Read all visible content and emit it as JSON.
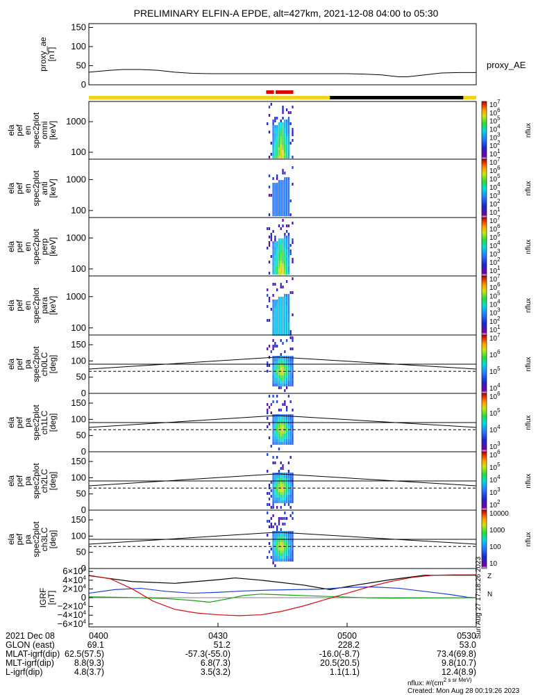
{
  "title": "PRELIMINARY ELFIN-A EPDE, alt=427km, 2021-12-08 04:00 to 05:30",
  "chart_data": [
    {
      "id": "proxy_ae",
      "type": "line",
      "ylabel": [
        "proxy_ae",
        "[nT]"
      ],
      "yticks": [
        "150",
        "100",
        "50",
        "0"
      ],
      "ylim": [
        0,
        160
      ],
      "legend": "proxy_AE",
      "x_minutes": [
        0,
        2,
        5,
        8,
        12,
        16,
        20,
        24,
        28,
        32,
        36,
        40,
        44,
        48,
        52,
        56,
        60,
        64,
        68,
        72,
        74,
        78,
        82,
        86,
        90
      ],
      "values": [
        33,
        35,
        38,
        40,
        40,
        38,
        33,
        30,
        29,
        29,
        29,
        29,
        29,
        29,
        29,
        29,
        29,
        28,
        26,
        21,
        21,
        26,
        31,
        32,
        32
      ]
    },
    {
      "id": "ela_pef_en_spec2plot_omni",
      "type": "heatmap",
      "ylabel": [
        "ela",
        "pef",
        "en",
        "spec2plot",
        "omni",
        "[keV]"
      ],
      "yticks": [
        "1000",
        "100"
      ],
      "colorbar_label": "nflux",
      "colorbar_ticks": [
        "10^7",
        "10^6",
        "10^5",
        "10^4",
        "10^3",
        "10^2",
        "10^1"
      ]
    },
    {
      "id": "ela_pef_en_spec2plot_anti",
      "type": "heatmap",
      "ylabel": [
        "ela",
        "pef",
        "en",
        "spec2plot",
        "anti",
        "[keV]"
      ],
      "yticks": [
        "1000",
        "100"
      ],
      "colorbar_label": "nflux",
      "colorbar_ticks": [
        "10^7",
        "10^6",
        "10^5",
        "10^4",
        "10^3",
        "10^2",
        "10^1"
      ]
    },
    {
      "id": "ela_pef_en_spec2plot_perp",
      "type": "heatmap",
      "ylabel": [
        "ela",
        "pef",
        "en",
        "spec2plot",
        "perp",
        "[keV]"
      ],
      "yticks": [
        "1000",
        "100"
      ],
      "colorbar_label": "nflux",
      "colorbar_ticks": [
        "10^7",
        "10^6",
        "10^5",
        "10^4",
        "10^3",
        "10^2",
        "10^1"
      ]
    },
    {
      "id": "ela_pef_en_spec2plot_para",
      "type": "heatmap",
      "ylabel": [
        "ela",
        "pef",
        "en",
        "spec2plot",
        "para",
        "[keV]"
      ],
      "yticks": [
        "1000",
        "100"
      ],
      "colorbar_label": "nflux",
      "colorbar_ticks": [
        "10^7",
        "10^6",
        "10^5",
        "10^4",
        "10^3",
        "10^2",
        "10^1"
      ]
    },
    {
      "id": "ela_pef_pa_spec2plot_ch0LC",
      "type": "heatmap",
      "ylabel": [
        "ela",
        "pef",
        "pa",
        "spec2plot",
        "ch0LC",
        "[deg]"
      ],
      "yticks": [
        "150",
        "100",
        "50",
        "0"
      ],
      "colorbar_label": "nflux",
      "colorbar_ticks": [
        "10^7",
        "10^6",
        "10^5",
        "10^4"
      ]
    },
    {
      "id": "ela_pef_pa_spec2plot_ch1LC",
      "type": "heatmap",
      "ylabel": [
        "ela",
        "pef",
        "pa",
        "spec2plot",
        "ch1LC",
        "[deg]"
      ],
      "yticks": [
        "150",
        "100",
        "50",
        "0"
      ],
      "colorbar_label": "nflux",
      "colorbar_ticks": [
        "10^6",
        "10^5",
        "10^4",
        "10^3"
      ]
    },
    {
      "id": "ela_pef_pa_spec2plot_ch2LC",
      "type": "heatmap",
      "ylabel": [
        "ela",
        "pef",
        "pa",
        "spec2plot",
        "ch2LC",
        "[deg]"
      ],
      "yticks": [
        "150",
        "100",
        "50",
        "0"
      ],
      "colorbar_label": "nflux",
      "colorbar_ticks": [
        "10^6",
        "10^5",
        "10^4",
        "10^3",
        "10^2"
      ]
    },
    {
      "id": "ela_pef_pa_spec2plot_ch3LC",
      "type": "heatmap",
      "ylabel": [
        "ela",
        "pef",
        "pa",
        "spec2plot",
        "ch3LC",
        "[deg]"
      ],
      "yticks": [
        "150",
        "100",
        "50",
        "0"
      ],
      "colorbar_label": "nflux",
      "colorbar_ticks": [
        "10000",
        "1000",
        "100",
        "10"
      ]
    },
    {
      "id": "igrf",
      "type": "line",
      "ylabel": [
        "IGRF",
        "[nT]"
      ],
      "yticks": [
        "6×10^4",
        "4×10^4",
        "2×10^4",
        "0",
        "−2×10^4",
        "−4×10^4",
        "−6×10^4"
      ],
      "ylim": [
        -65000,
        65000
      ],
      "legend": [
        "Z",
        "N"
      ],
      "series": [
        {
          "name": "black",
          "color": "#000000",
          "x_minutes": [
            0,
            10,
            20,
            30,
            34,
            40,
            50,
            56,
            62,
            70,
            78,
            84,
            90
          ],
          "values": [
            49000,
            36000,
            32000,
            40000,
            44000,
            39000,
            28000,
            18000,
            28000,
            40000,
            50000,
            50000,
            50000
          ]
        },
        {
          "name": "blue",
          "color": "#1f3fd0",
          "x_minutes": [
            0,
            6,
            12,
            18,
            24,
            30,
            36,
            42,
            48,
            54,
            60,
            66,
            72,
            78,
            84,
            88,
            90
          ],
          "values": [
            10000,
            18000,
            21000,
            14000,
            10000,
            12000,
            15000,
            17000,
            18000,
            19000,
            23000,
            24000,
            21000,
            14000,
            7000,
            1000,
            0
          ]
        },
        {
          "name": "green",
          "color": "#14a014",
          "x_minutes": [
            0,
            6,
            12,
            18,
            24,
            28,
            32,
            36,
            40,
            46,
            52,
            58,
            64,
            70,
            80,
            90
          ],
          "values": [
            2000,
            1000,
            0,
            -2000,
            -6000,
            -10000,
            -3000,
            5000,
            8000,
            6000,
            4000,
            2000,
            0,
            -1000,
            -500,
            0
          ]
        },
        {
          "name": "red",
          "color": "#d01010",
          "x_minutes": [
            0,
            5,
            10,
            15,
            20,
            25,
            30,
            35,
            40,
            45,
            50,
            55,
            60,
            65,
            70,
            75,
            80,
            85,
            90
          ],
          "values": [
            50000,
            42000,
            20000,
            -8000,
            -26000,
            -34000,
            -38000,
            -40000,
            -38000,
            -30000,
            -18000,
            -4000,
            10000,
            24000,
            36000,
            45000,
            50000,
            51000,
            51000
          ]
        }
      ]
    }
  ],
  "x_axis": {
    "date_label": "2021 Dec 08",
    "ticks": [
      "0400",
      "0430",
      "0500",
      "0530"
    ],
    "rows": [
      {
        "label": "GLON (east)",
        "values": [
          "69.1",
          "51.2",
          "228.2",
          "53.0"
        ]
      },
      {
        "label": "MLAT-igrf(dip)",
        "values": [
          "62.5(57.5)",
          "-57.3(-55.0)",
          "-16.0(-8.7)",
          "73.4(69.8)"
        ]
      },
      {
        "label": "MLT-igrf(dip)",
        "values": [
          "8.8(9.3)",
          "6.8(7.3)",
          "20.5(20.5)",
          "9.8(10.7)"
        ]
      },
      {
        "label": "L-igrf(dip)",
        "values": [
          "4.8(3.7)",
          "3.5(3.2)",
          "1.1(1.1)",
          "12.4(8.9)"
        ]
      }
    ]
  },
  "side_stamp": "Sun Aug 27 17:18:26 2023",
  "footer": {
    "units": "nflux: #/(cm^2 s sr MeV)",
    "created": "Created: Mon Aug 28 00:19:26 2023"
  }
}
